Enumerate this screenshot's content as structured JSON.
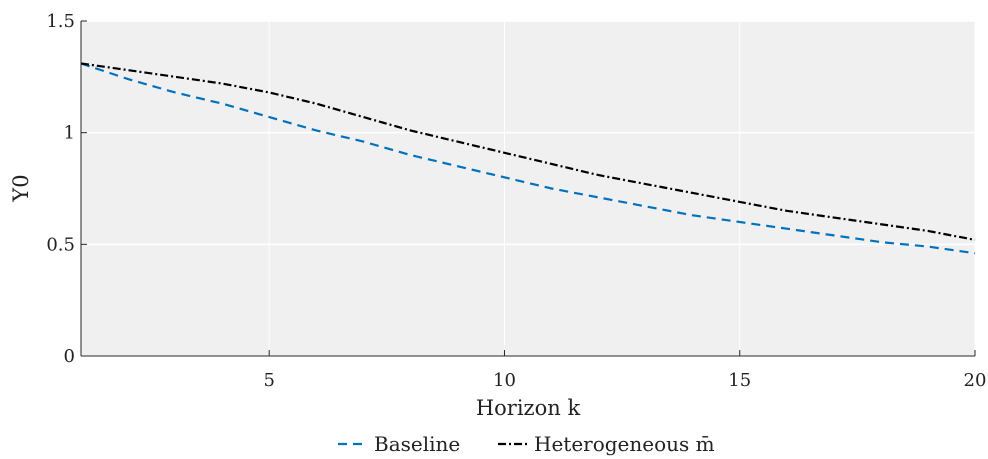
{
  "chart_data": {
    "type": "line",
    "title": "",
    "xlabel": "Horizon k",
    "ylabel": "Y0",
    "xlim": [
      1,
      20
    ],
    "ylim": [
      0,
      1.5
    ],
    "x_ticks": [
      5,
      10,
      15,
      20
    ],
    "y_ticks": [
      0,
      0.5,
      1,
      1.5
    ],
    "y_tick_labels": [
      "0",
      "0.5",
      "1",
      "1.5"
    ],
    "grid": true,
    "background": "#f0f0f0",
    "legend_position": "bottom-center",
    "x": [
      1,
      2,
      3,
      4,
      5,
      6,
      7,
      8,
      9,
      10,
      11,
      12,
      13,
      14,
      15,
      16,
      17,
      18,
      19,
      20
    ],
    "series": [
      {
        "name": "Baseline",
        "color": "#0072bd",
        "line_style": "dashed",
        "values": [
          1.31,
          1.24,
          1.18,
          1.13,
          1.07,
          1.01,
          0.96,
          0.9,
          0.85,
          0.8,
          0.75,
          0.71,
          0.67,
          0.63,
          0.6,
          0.57,
          0.54,
          0.51,
          0.49,
          0.46
        ]
      },
      {
        "name": "Heterogeneous m̄",
        "color": "#000000",
        "line_style": "dash-dot",
        "values": [
          1.31,
          1.28,
          1.25,
          1.22,
          1.18,
          1.13,
          1.07,
          1.01,
          0.96,
          0.91,
          0.86,
          0.81,
          0.77,
          0.73,
          0.69,
          0.65,
          0.62,
          0.59,
          0.56,
          0.52
        ]
      }
    ]
  }
}
